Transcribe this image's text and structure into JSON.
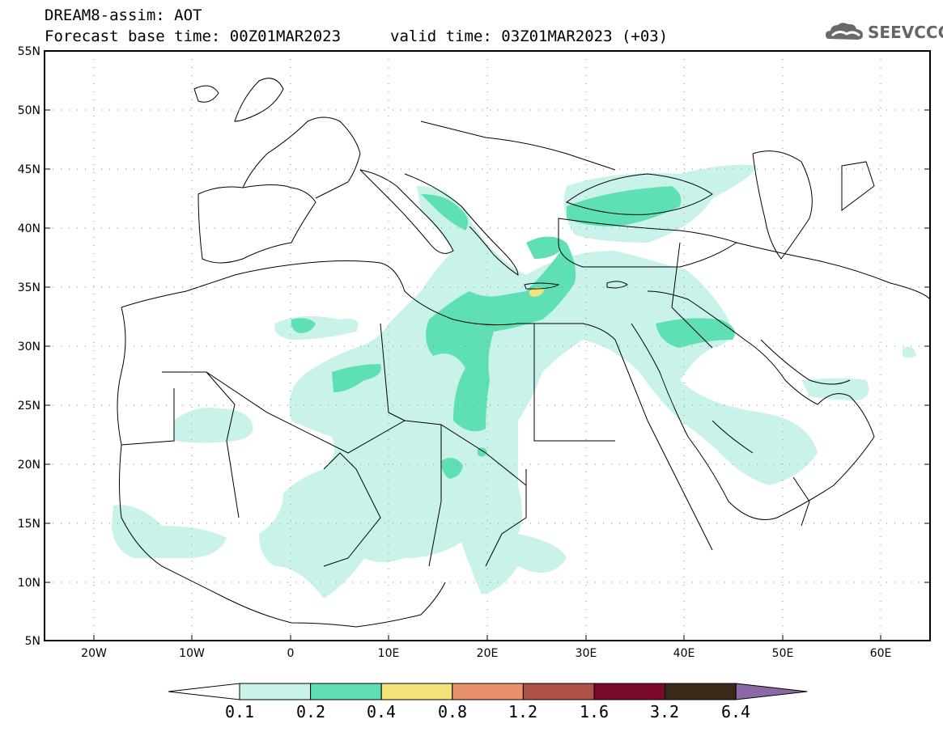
{
  "header": {
    "title": "DREAM8-assim: AOT",
    "base_time": "Forecast base time: 00Z01MAR2023",
    "valid_time": "valid time: 03Z01MAR2023 (+03)"
  },
  "logo": {
    "text": "SEEVCCC",
    "icon": "cloud-logo-icon",
    "color": "#666666"
  },
  "axes": {
    "lat_labels": [
      "55N",
      "50N",
      "45N",
      "40N",
      "35N",
      "30N",
      "25N",
      "20N",
      "15N",
      "10N",
      "5N"
    ],
    "lon_labels": [
      "20W",
      "10W",
      "0",
      "10E",
      "20E",
      "30E",
      "40E",
      "50E",
      "60E"
    ],
    "lat_range": [
      5,
      55
    ],
    "lon_range": [
      -25,
      65
    ],
    "grid": "dotted"
  },
  "colorbar": {
    "labels": [
      "0.1",
      "0.2",
      "0.4",
      "0.8",
      "1.2",
      "1.6",
      "3.2",
      "6.4"
    ],
    "colors": [
      "#ffffff",
      "#c8f2ea",
      "#5ee0b4",
      "#f2e47a",
      "#e8906a",
      "#ae5248",
      "#7c0a2c",
      "#3a2818",
      "#8c68a4"
    ]
  }
}
